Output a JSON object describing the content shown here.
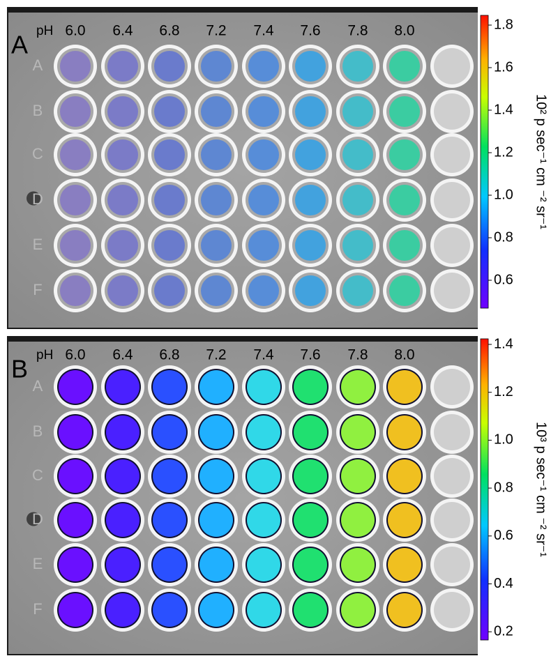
{
  "panels": [
    {
      "label": "A",
      "ph_label": "pH",
      "ph_values": [
        "6.0",
        "6.4",
        "6.8",
        "7.2",
        "7.4",
        "7.6",
        "7.8",
        "8.0"
      ],
      "rows": [
        "A",
        "B",
        "C",
        "D",
        "E",
        "F"
      ],
      "colorbar_ticks": [
        "1.8",
        "1.6",
        "1.4",
        "1.2",
        "1.0",
        "0.8",
        "0.6"
      ],
      "colorbar_label": "10² p sec⁻¹ cm ⁻² sr⁻¹"
    },
    {
      "label": "B",
      "ph_label": "pH",
      "ph_values": [
        "6.0",
        "6.4",
        "6.8",
        "7.2",
        "7.4",
        "7.6",
        "7.8",
        "8.0"
      ],
      "rows": [
        "A",
        "B",
        "C",
        "D",
        "E",
        "F"
      ],
      "colorbar_ticks": [
        "1.4",
        "1.2",
        "1.0",
        "0.8",
        "0.6",
        "0.4",
        "0.2"
      ],
      "colorbar_label": "10³ p sec⁻¹ cm ⁻² sr⁻¹"
    }
  ]
}
